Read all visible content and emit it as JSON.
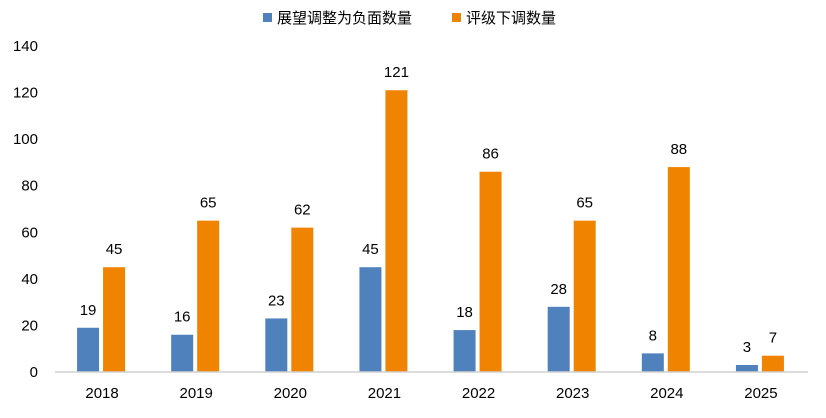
{
  "chart_data": {
    "type": "bar",
    "title": "",
    "xlabel": "",
    "ylabel": "",
    "categories": [
      "2018",
      "2019",
      "2020",
      "2021",
      "2022",
      "2023",
      "2024",
      "2025"
    ],
    "series": [
      {
        "name": "展望调整为负面数量",
        "color": "#4F81BD",
        "values": [
          19,
          16,
          23,
          45,
          18,
          28,
          8,
          3
        ]
      },
      {
        "name": "评级下调数量",
        "color": "#F08300",
        "values": [
          45,
          65,
          62,
          121,
          86,
          65,
          88,
          7
        ]
      }
    ],
    "ylim": [
      0,
      140
    ],
    "yticks": [
      0,
      20,
      40,
      60,
      80,
      100,
      120,
      140
    ],
    "grid": false,
    "legend": "top-center",
    "data_labels": true
  }
}
